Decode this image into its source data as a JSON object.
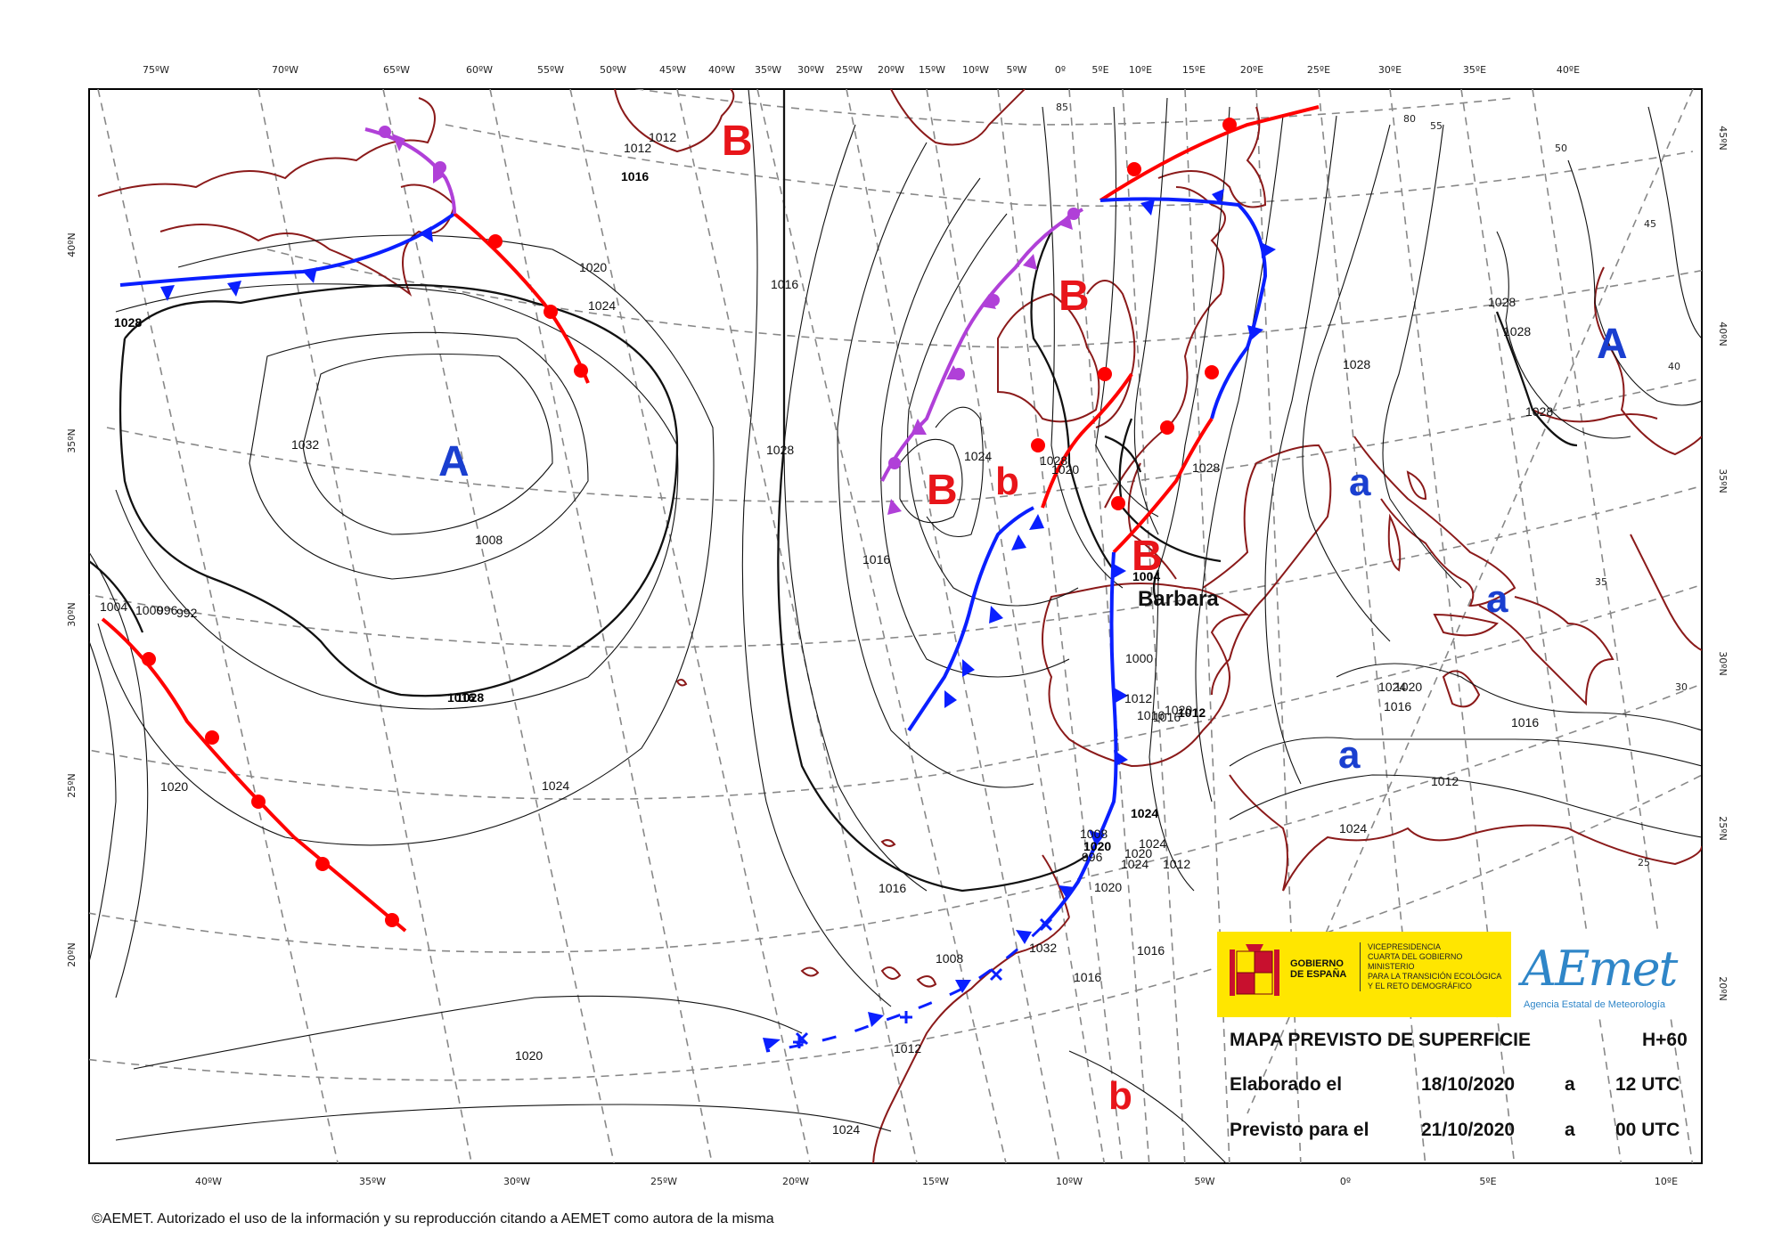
{
  "map": {
    "top_longitudes": [
      "75ºW",
      "70ºW",
      "65ºW",
      "60ºW",
      "55ºW",
      "50ºW",
      "45ºW",
      "40ºW",
      "35ºW",
      "30ºW",
      "25ºW",
      "20ºW",
      "15ºW",
      "10ºW",
      "5ºW",
      "0º",
      "5ºE",
      "10ºE",
      "15ºE",
      "20ºE",
      "25ºE",
      "30ºE",
      "35ºE",
      "40ºE"
    ],
    "bottom_longitudes": [
      "40ºW",
      "35ºW",
      "30ºW",
      "25ºW",
      "20ºW",
      "15ºW",
      "10ºW",
      "5ºW",
      "0º",
      "5ºE",
      "10ºE"
    ],
    "left_latitudes": [
      "40ºN",
      "35ºN",
      "30ºN",
      "25ºN",
      "20ºN"
    ],
    "right_latitudes": [
      "45ºN",
      "40ºN",
      "35ºN",
      "30ºN",
      "25ºN",
      "20ºN"
    ],
    "graticule_values": [
      "85",
      "80",
      "55",
      "50",
      "45",
      "40",
      "35",
      "30",
      "25"
    ],
    "pressure_systems": [
      {
        "symbol": "B",
        "kind": "low",
        "color": "#e8151a"
      },
      {
        "symbol": "B",
        "kind": "low",
        "color": "#e8151a"
      },
      {
        "symbol": "B",
        "kind": "low",
        "color": "#e8151a"
      },
      {
        "symbol": "B",
        "kind": "low",
        "color": "#e8151a"
      },
      {
        "symbol": "b",
        "kind": "secondary low",
        "color": "#e8151a"
      },
      {
        "symbol": "b",
        "kind": "secondary low",
        "color": "#e8151a"
      },
      {
        "symbol": "A",
        "kind": "high",
        "color": "#1a3fd0"
      },
      {
        "symbol": "A",
        "kind": "high",
        "color": "#1a3fd0"
      },
      {
        "symbol": "a",
        "kind": "secondary high",
        "color": "#1a3fd0"
      },
      {
        "symbol": "a",
        "kind": "secondary high",
        "color": "#1a3fd0"
      },
      {
        "symbol": "a",
        "kind": "secondary high",
        "color": "#1a3fd0"
      }
    ],
    "storm_name": "Barbara",
    "isobar_labels": [
      "1012",
      "1016",
      "1020",
      "1024",
      "1028",
      "1032",
      "1008",
      "1004",
      "1000",
      "996",
      "992",
      "1016",
      "1020",
      "1024",
      "1028",
      "1032",
      "1008",
      "1012",
      "1016",
      "1020",
      "1024",
      "1028",
      "1012",
      "1016",
      "1020",
      "1024",
      "1028",
      "1016",
      "1016",
      "1016",
      "1020",
      "1020",
      "1024",
      "1012",
      "1008",
      "1004",
      "1000",
      "996",
      "1012",
      "1016",
      "1020",
      "1012",
      "1016",
      "1020",
      "1024",
      "1024",
      "1024",
      "1024",
      "1020",
      "1016",
      "1016",
      "1012",
      "1028",
      "1028",
      "1028",
      "1028",
      "1028"
    ],
    "fronts": [
      {
        "type": "warm",
        "color": "#ff0000"
      },
      {
        "type": "cold",
        "color": "#0a1fff"
      },
      {
        "type": "occluded",
        "color": "#b040d8"
      },
      {
        "type": "quasi-stationary dissipating",
        "color": "#0a1fff"
      }
    ],
    "colors": {
      "coast": "#8b1a1a",
      "isobar": "#111111",
      "graticule": "#888888"
    }
  },
  "logos": {
    "gov_line1": "GOBIERNO",
    "gov_line2": "DE ESPAÑA",
    "ministry_lines": [
      "VICEPRESIDENCIA",
      "CUARTA DEL GOBIERNO",
      "MINISTERIO",
      "PARA LA TRANSICIÓN ECOLÓGICA",
      "Y EL RETO DEMOGRÁFICO"
    ],
    "aemet_word": "AEmet",
    "aemet_agency": "Agencia Estatal de Meteorología"
  },
  "info": {
    "title": "MAPA PREVISTO DE SUPERFICIE",
    "lead": "H+60",
    "elaborated_label": "Elaborado el",
    "elaborated_date": "18/10/2020",
    "at": "a",
    "elaborated_time": "12 UTC",
    "valid_label": "Previsto para el",
    "valid_date": "21/10/2020",
    "valid_time": "00 UTC"
  },
  "copyright": "©AEMET. Autorizado el uso de la información y su reproducción citando a AEMET como autora de la misma"
}
